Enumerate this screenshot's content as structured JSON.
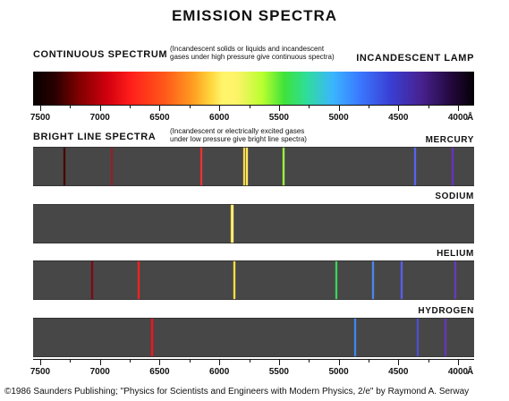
{
  "title": "EMISSION SPECTRA",
  "continuous": {
    "label": "CONTINUOUS SPECTRUM",
    "note": "(Incandescent solids or liquids and incandescent\ngases under high pressure give continuous spectra)",
    "source": "INCANDESCENT LAMP"
  },
  "bright_line": {
    "label": "BRIGHT LINE SPECTRA",
    "note": "(Incandescent or electrically excited gases\nunder low pressure give bright line spectra)"
  },
  "axis": {
    "ticks": [
      "7500",
      "7000",
      "6500",
      "6000",
      "5500",
      "5000",
      "4500",
      "4000"
    ],
    "unit": "Å"
  },
  "spectra": [
    {
      "element": "MERCURY",
      "lines": [
        {
          "wl": 7300,
          "color": "#4a0000",
          "opacity": 0.9
        },
        {
          "wl": 6900,
          "color": "#b01020",
          "opacity": 0.7
        },
        {
          "wl": 6150,
          "color": "#ff3030",
          "opacity": 0.9
        },
        {
          "wl": 5790,
          "color": "#ffd84a",
          "opacity": 1.0
        },
        {
          "wl": 5770,
          "color": "#ffe860",
          "opacity": 1.0
        },
        {
          "wl": 5460,
          "color": "#9cff40",
          "opacity": 1.0
        },
        {
          "wl": 4358,
          "color": "#5a67ff",
          "opacity": 0.9
        },
        {
          "wl": 4047,
          "color": "#6b2fd0",
          "opacity": 0.9
        }
      ]
    },
    {
      "element": "SODIUM",
      "lines": [
        {
          "wl": 5896,
          "color": "#ffe040",
          "opacity": 1.0
        },
        {
          "wl": 5890,
          "color": "#fff080",
          "opacity": 1.0
        }
      ]
    },
    {
      "element": "HELIUM",
      "lines": [
        {
          "wl": 7065,
          "color": "#8a0010",
          "opacity": 0.9
        },
        {
          "wl": 6678,
          "color": "#ff2020",
          "opacity": 1.0
        },
        {
          "wl": 5876,
          "color": "#ffe040",
          "opacity": 1.0
        },
        {
          "wl": 5016,
          "color": "#3fe060",
          "opacity": 0.9
        },
        {
          "wl": 4713,
          "color": "#4a90ff",
          "opacity": 0.9
        },
        {
          "wl": 4471,
          "color": "#5a60ff",
          "opacity": 0.9
        },
        {
          "wl": 4026,
          "color": "#6a3ad8",
          "opacity": 0.8
        }
      ]
    },
    {
      "element": "HYDROGEN",
      "lines": [
        {
          "wl": 6563,
          "color": "#ff1020",
          "opacity": 1.0
        },
        {
          "wl": 4861,
          "color": "#3f8fff",
          "opacity": 0.9
        },
        {
          "wl": 4340,
          "color": "#4e4fe0",
          "opacity": 0.9
        },
        {
          "wl": 4102,
          "color": "#6a36c8",
          "opacity": 0.9
        }
      ]
    }
  ],
  "credit": "©1986 Saunders Publishing; \"Physics for Scientists and Engineers with Modern Physics, 2/e\" by Raymond A. Serway"
}
